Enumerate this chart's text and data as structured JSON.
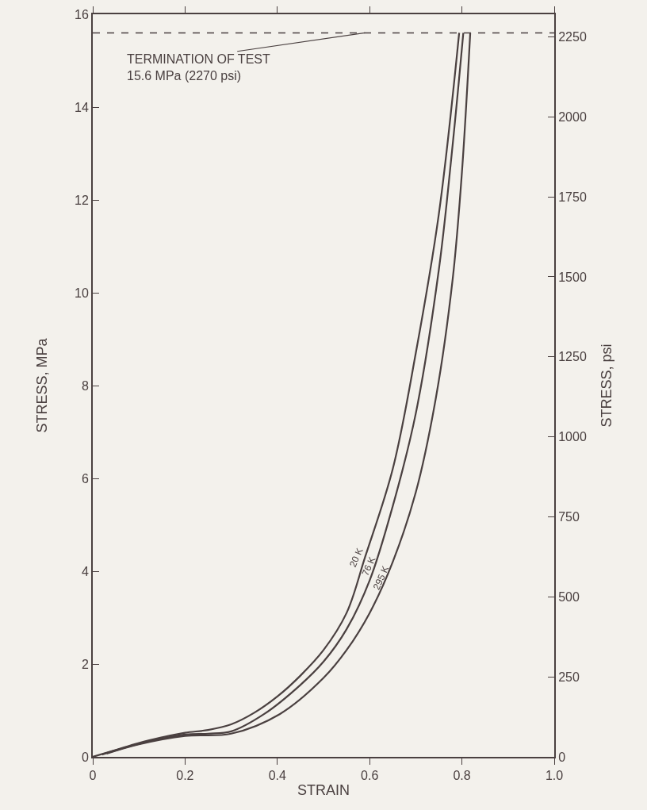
{
  "chart_data": {
    "type": "line",
    "xlabel": "STRAIN",
    "ylabel": "STRESS, MPa",
    "y2label": "STRESS, psi",
    "xlim": [
      0,
      1
    ],
    "xticks": [
      0,
      0.2,
      0.4,
      0.6,
      0.8,
      {
        "value": 1,
        "label": "1.0"
      }
    ],
    "ylim": [
      0,
      16
    ],
    "yticks": [
      0,
      2,
      4,
      6,
      8,
      10,
      12,
      14,
      16
    ],
    "y2lim": [
      0,
      2320.6
    ],
    "y2ticks": [
      0,
      250,
      500,
      750,
      1000,
      1250,
      1500,
      1750,
      2000,
      2250
    ],
    "grid": false,
    "legend": false,
    "marker": "none",
    "line_style": "solid",
    "series": [
      {
        "name": "20 K",
        "color": "#4a4040",
        "x": [
          0,
          0.05,
          0.1,
          0.15,
          0.2,
          0.25,
          0.3,
          0.35,
          0.4,
          0.45,
          0.5,
          0.55,
          0.59,
          0.65,
          0.7,
          0.75,
          0.794
        ],
        "values": [
          0,
          0.15,
          0.3,
          0.42,
          0.52,
          0.58,
          0.7,
          0.95,
          1.3,
          1.75,
          2.3,
          3.1,
          4.3,
          6.2,
          8.7,
          11.7,
          15.6
        ]
      },
      {
        "name": "76 K",
        "color": "#4a4040",
        "x": [
          0.02,
          0.1,
          0.2,
          0.25,
          0.3,
          0.371,
          0.45,
          0.5,
          0.55,
          0.6,
          0.65,
          0.7,
          0.75,
          0.78,
          0.803
        ],
        "values": [
          0.05,
          0.28,
          0.48,
          0.5,
          0.55,
          0.92,
          1.55,
          2.05,
          2.75,
          3.8,
          5.4,
          7.4,
          10.5,
          13.2,
          15.6
        ]
      },
      {
        "name": "295 K",
        "color": "#4a4040",
        "x": [
          0.03,
          0.1,
          0.2,
          0.3,
          0.405,
          0.5,
          0.55,
          0.6,
          0.65,
          0.7,
          0.744,
          0.78,
          0.8,
          0.818
        ],
        "values": [
          0.07,
          0.27,
          0.45,
          0.5,
          0.92,
          1.7,
          2.3,
          3.1,
          4.2,
          5.7,
          7.76,
          10.3,
          12.6,
          15.6
        ]
      }
    ],
    "ref_lines": [
      {
        "axis": "y",
        "value": 15.6,
        "label": "TERMINATION OF TEST\n15.6 MPa (2270 psi)",
        "line_style": "dashed",
        "color": "#4a4040"
      }
    ]
  }
}
